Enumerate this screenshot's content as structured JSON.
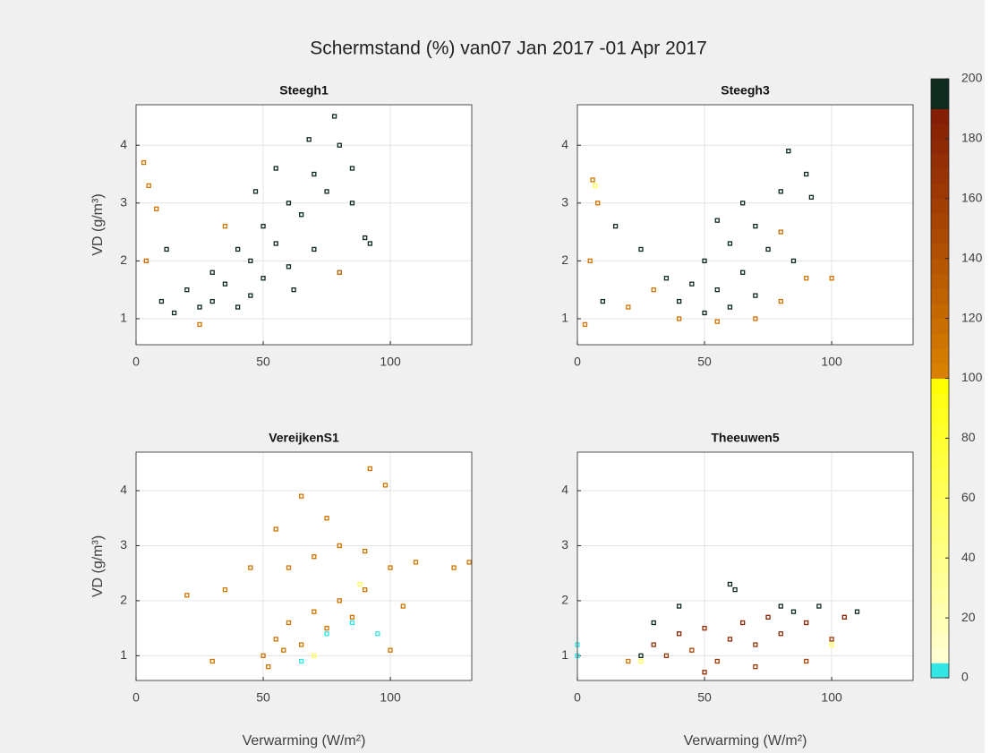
{
  "title": "Schermstand (%) van07 Jan 2017 -01 Apr 2017",
  "colorbar": {
    "clim": [
      0,
      200
    ],
    "ticks": [
      0,
      20,
      40,
      60,
      80,
      100,
      120,
      140,
      160,
      180,
      200
    ],
    "colormap": [
      "#33e6e6",
      "#ffffd0",
      "#ffffc5",
      "#ffffba",
      "#ffffaf",
      "#ffffa4",
      "#ffff99",
      "#ffff8e",
      "#ffff83",
      "#ffff78",
      "#ffff6d",
      "#ffff62",
      "#ffff57",
      "#ffff4c",
      "#ffff41",
      "#ffff36",
      "#ffff2b",
      "#ffff20",
      "#ffff15",
      "#ffff00",
      "#d98000",
      "#d47a00",
      "#cf7400",
      "#ca6e01",
      "#c56802",
      "#c06202",
      "#bb5c03",
      "#b65603",
      "#b15003",
      "#ac4a04",
      "#a74404",
      "#a23e04",
      "#9d3804",
      "#983305",
      "#932e05",
      "#8e2905",
      "#892405",
      "#841f05",
      "#0f2a1e",
      "#0f2a1e"
    ]
  },
  "chart_data": [
    {
      "type": "scatter",
      "title": "Steegh1",
      "ylabel": "VD (g/m³)",
      "xlim": [
        0,
        132
      ],
      "ylim": [
        0.55,
        4.7
      ],
      "xticks": [
        0,
        50,
        100
      ],
      "yticks": [
        1,
        2,
        3,
        4
      ],
      "grid": true,
      "x": [
        10,
        15,
        20,
        25,
        30,
        35,
        40,
        45,
        50,
        55,
        60,
        65,
        70,
        75,
        80,
        78,
        85,
        90,
        92,
        60,
        45,
        55,
        68,
        40,
        30,
        50,
        70,
        85,
        62,
        3,
        5,
        8,
        4,
        25,
        80,
        35,
        12,
        47
      ],
      "y": [
        1.3,
        1.1,
        1.5,
        1.2,
        1.8,
        1.6,
        2.2,
        2.0,
        2.6,
        2.3,
        3.0,
        2.8,
        3.5,
        3.2,
        4.0,
        4.5,
        3.0,
        2.4,
        2.3,
        1.9,
        1.4,
        3.6,
        4.1,
        1.2,
        1.3,
        1.7,
        2.2,
        3.6,
        1.5,
        3.7,
        3.3,
        2.9,
        2.0,
        0.9,
        1.8,
        2.6,
        2.2,
        3.2
      ],
      "c": [
        200,
        200,
        200,
        200,
        200,
        200,
        200,
        200,
        200,
        200,
        200,
        200,
        200,
        200,
        200,
        200,
        200,
        200,
        200,
        200,
        200,
        200,
        200,
        200,
        200,
        200,
        200,
        200,
        200,
        110,
        110,
        110,
        115,
        110,
        130,
        110,
        200,
        200
      ]
    },
    {
      "type": "scatter",
      "title": "Steegh3",
      "xlim": [
        0,
        132
      ],
      "ylim": [
        0.55,
        4.7
      ],
      "xticks": [
        0,
        50,
        100
      ],
      "yticks": [
        1,
        2,
        3,
        4
      ],
      "grid": true,
      "x": [
        40,
        45,
        50,
        55,
        60,
        65,
        70,
        75,
        80,
        83,
        90,
        92,
        55,
        60,
        70,
        35,
        25,
        15,
        10,
        85,
        50,
        65,
        6,
        8,
        5,
        3,
        20,
        40,
        55,
        70,
        80,
        90,
        100,
        80,
        30,
        7
      ],
      "y": [
        1.3,
        1.6,
        2.0,
        1.5,
        2.3,
        1.8,
        2.6,
        2.2,
        3.2,
        3.9,
        3.5,
        3.1,
        2.7,
        1.2,
        1.4,
        1.7,
        2.2,
        2.6,
        1.3,
        2.0,
        1.1,
        3.0,
        3.4,
        3.0,
        2.0,
        0.9,
        1.2,
        1.0,
        0.95,
        1.0,
        1.3,
        1.7,
        1.7,
        2.5,
        1.5,
        3.3
      ],
      "c": [
        200,
        200,
        200,
        200,
        200,
        200,
        200,
        200,
        200,
        200,
        200,
        200,
        200,
        200,
        200,
        200,
        200,
        200,
        200,
        200,
        200,
        200,
        110,
        110,
        110,
        110,
        110,
        110,
        110,
        110,
        110,
        110,
        110,
        115,
        110,
        60
      ]
    },
    {
      "type": "scatter",
      "title": "VereijkenS1",
      "xlabel": "Verwarming (W/m²)",
      "ylabel": "VD (g/m³)",
      "xlim": [
        0,
        132
      ],
      "ylim": [
        0.55,
        4.7
      ],
      "xticks": [
        0,
        50,
        100
      ],
      "yticks": [
        1,
        2,
        3,
        4
      ],
      "grid": true,
      "x": [
        50,
        55,
        60,
        65,
        70,
        52,
        58,
        75,
        80,
        85,
        90,
        60,
        70,
        80,
        90,
        100,
        75,
        65,
        92,
        98,
        110,
        125,
        131,
        20,
        30,
        35,
        45,
        100,
        105,
        55,
        85,
        95,
        75,
        65,
        88,
        70
      ],
      "y": [
        1.0,
        1.3,
        1.6,
        1.2,
        1.8,
        0.8,
        1.1,
        1.5,
        2.0,
        1.7,
        2.2,
        2.6,
        2.8,
        3.0,
        2.9,
        2.6,
        3.5,
        3.9,
        4.4,
        4.1,
        2.7,
        2.6,
        2.7,
        2.1,
        0.9,
        2.2,
        2.6,
        1.1,
        1.9,
        3.3,
        1.6,
        1.4,
        1.4,
        0.9,
        2.3,
        1.0
      ],
      "c": [
        110,
        110,
        110,
        110,
        110,
        110,
        110,
        110,
        110,
        110,
        110,
        110,
        110,
        110,
        110,
        110,
        110,
        110,
        110,
        110,
        110,
        110,
        110,
        110,
        110,
        110,
        110,
        110,
        110,
        110,
        3,
        3,
        3,
        3,
        60,
        60
      ]
    },
    {
      "type": "scatter",
      "title": "Theeuwen5",
      "xlabel": "Verwarming (W/m²)",
      "xlim": [
        0,
        132
      ],
      "ylim": [
        0.55,
        4.7
      ],
      "xticks": [
        0,
        50,
        100
      ],
      "yticks": [
        1,
        2,
        3,
        4
      ],
      "grid": true,
      "x": [
        0,
        0,
        20,
        25,
        30,
        35,
        40,
        45,
        50,
        55,
        60,
        65,
        70,
        75,
        80,
        85,
        90,
        95,
        100,
        105,
        110,
        40,
        60,
        62,
        30,
        70,
        90,
        80,
        50,
        100,
        25
      ],
      "y": [
        1.0,
        1.2,
        0.9,
        1.0,
        1.2,
        1.0,
        1.4,
        1.1,
        1.5,
        0.9,
        1.3,
        1.6,
        1.2,
        1.7,
        1.4,
        1.8,
        1.6,
        1.9,
        1.3,
        1.7,
        1.8,
        1.9,
        2.3,
        2.2,
        1.6,
        0.8,
        0.9,
        1.9,
        0.7,
        1.2,
        0.9
      ],
      "c": [
        3,
        3,
        110,
        200,
        170,
        160,
        180,
        150,
        170,
        160,
        175,
        180,
        165,
        180,
        170,
        200,
        180,
        200,
        160,
        180,
        200,
        200,
        200,
        200,
        200,
        160,
        150,
        200,
        170,
        60,
        60
      ]
    }
  ]
}
